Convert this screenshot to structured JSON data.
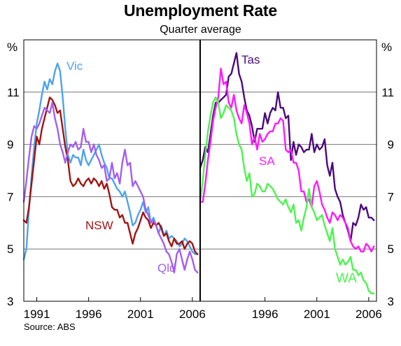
{
  "title": "Unemployment Rate",
  "subtitle": "Quarter average",
  "source": "Source: ABS",
  "chart_data": [
    {
      "type": "line",
      "panel": "left",
      "ylabel": "%",
      "ylim": [
        3,
        13
      ],
      "yticks": [
        3,
        5,
        7,
        9,
        11
      ],
      "xlim": [
        1989.75,
        2006.75
      ],
      "xticks": [
        1991,
        1996,
        2001,
        2006
      ],
      "grid": true,
      "series": [
        {
          "name": "Vic",
          "color": "#4da3ec",
          "x": [
            1989.75,
            1990,
            1990.25,
            1990.5,
            1990.75,
            1991,
            1991.25,
            1991.5,
            1991.75,
            1992,
            1992.25,
            1992.5,
            1992.75,
            1993,
            1993.25,
            1993.5,
            1993.75,
            1994,
            1994.25,
            1994.5,
            1994.75,
            1995,
            1995.25,
            1995.5,
            1995.75,
            1996,
            1996.25,
            1996.5,
            1996.75,
            1997,
            1997.25,
            1997.5,
            1997.75,
            1998,
            1998.25,
            1998.5,
            1998.75,
            1999,
            1999.25,
            1999.5,
            1999.75,
            2000,
            2000.25,
            2000.5,
            2000.75,
            2001,
            2001.25,
            2001.5,
            2001.75,
            2002,
            2002.25,
            2002.5,
            2002.75,
            2003,
            2003.25,
            2003.5,
            2003.75,
            2004,
            2004.25,
            2004.5,
            2004.75,
            2005,
            2005.25,
            2005.5,
            2005.75,
            2006,
            2006.25,
            2006.5
          ],
          "y": [
            4.6,
            5.0,
            6.5,
            7.8,
            8.9,
            9.8,
            10.3,
            10.9,
            11.4,
            11.1,
            11.5,
            11.3,
            11.8,
            12.1,
            11.8,
            10.8,
            9.6,
            8.6,
            8.3,
            8.6,
            8.5,
            8.5,
            8.2,
            8.8,
            8.4,
            8.2,
            8.4,
            8.6,
            8.8,
            9.0,
            8.6,
            8.3,
            8.1,
            7.7,
            7.7,
            7.5,
            7.3,
            7.2,
            7.0,
            7.2,
            6.8,
            6.4,
            5.9,
            6.0,
            6.3,
            6.5,
            6.8,
            6.4,
            6.6,
            6.0,
            6.2,
            5.9,
            5.6,
            5.9,
            5.5,
            5.7,
            5.4,
            5.5,
            5.4,
            5.3,
            5.1,
            5.2,
            5.4,
            5.3,
            5.1,
            4.9,
            4.8,
            4.8
          ]
        },
        {
          "name": "NSW",
          "color": "#a01414",
          "x": [
            1989.75,
            1990,
            1990.25,
            1990.5,
            1990.75,
            1991,
            1991.25,
            1991.5,
            1991.75,
            1992,
            1992.25,
            1992.5,
            1992.75,
            1993,
            1993.25,
            1993.5,
            1993.75,
            1994,
            1994.25,
            1994.5,
            1994.75,
            1995,
            1995.25,
            1995.5,
            1995.75,
            1996,
            1996.25,
            1996.5,
            1996.75,
            1997,
            1997.25,
            1997.5,
            1997.75,
            1998,
            1998.25,
            1998.5,
            1998.75,
            1999,
            1999.25,
            1999.5,
            1999.75,
            2000,
            2000.25,
            2000.5,
            2000.75,
            2001,
            2001.25,
            2001.5,
            2001.75,
            2002,
            2002.25,
            2002.5,
            2002.75,
            2003,
            2003.25,
            2003.5,
            2003.75,
            2004,
            2004.25,
            2004.5,
            2004.75,
            2005,
            2005.25,
            2005.5,
            2005.75,
            2006,
            2006.25,
            2006.5
          ],
          "y": [
            6.1,
            6.0,
            6.6,
            7.5,
            8.4,
            9.3,
            9.0,
            9.6,
            10.0,
            10.4,
            10.8,
            10.7,
            10.5,
            10.2,
            10.3,
            9.6,
            8.9,
            8.4,
            7.6,
            7.4,
            7.5,
            7.7,
            7.5,
            7.4,
            7.6,
            7.7,
            7.5,
            7.7,
            7.6,
            7.4,
            7.6,
            7.3,
            7.5,
            7.1,
            6.6,
            6.5,
            6.5,
            6.2,
            6.3,
            6.0,
            6.0,
            5.6,
            5.2,
            5.6,
            5.8,
            6.1,
            6.4,
            6.2,
            6.1,
            5.8,
            6.0,
            5.9,
            6.0,
            5.8,
            5.5,
            5.6,
            5.3,
            5.1,
            5.4,
            5.2,
            5.2,
            5.3,
            5.0,
            5.2,
            5.3,
            5.2,
            4.9,
            4.8
          ]
        },
        {
          "name": "Qld",
          "color": "#a45ef0",
          "x": [
            1989.75,
            1990,
            1990.25,
            1990.5,
            1990.75,
            1991,
            1991.25,
            1991.5,
            1991.75,
            1992,
            1992.25,
            1992.5,
            1992.75,
            1993,
            1993.25,
            1993.5,
            1993.75,
            1994,
            1994.25,
            1994.5,
            1994.75,
            1995,
            1995.25,
            1995.5,
            1995.75,
            1996,
            1996.25,
            1996.5,
            1996.75,
            1997,
            1997.25,
            1997.5,
            1997.75,
            1998,
            1998.25,
            1998.5,
            1998.75,
            1999,
            1999.25,
            1999.5,
            1999.75,
            2000,
            2000.25,
            2000.5,
            2000.75,
            2001,
            2001.25,
            2001.5,
            2001.75,
            2002,
            2002.25,
            2002.5,
            2002.75,
            2003,
            2003.25,
            2003.5,
            2003.75,
            2004,
            2004.25,
            2004.5,
            2004.75,
            2005,
            2005.25,
            2005.5,
            2005.75,
            2006,
            2006.25,
            2006.5
          ],
          "y": [
            6.8,
            7.6,
            8.5,
            9.3,
            9.7,
            9.6,
            9.8,
            10.1,
            10.4,
            10.3,
            10.2,
            10.6,
            10.0,
            9.6,
            9.0,
            8.7,
            8.3,
            8.7,
            9.0,
            8.9,
            9.1,
            8.8,
            8.9,
            9.6,
            9.1,
            9.1,
            8.7,
            9.0,
            8.6,
            8.4,
            8.1,
            8.2,
            7.6,
            7.7,
            8.3,
            7.7,
            7.9,
            7.5,
            8.3,
            8.8,
            8.2,
            8.3,
            7.4,
            7.6,
            7.4,
            7.2,
            7.0,
            6.5,
            6.3,
            6.0,
            6.1,
            5.9,
            5.6,
            5.4,
            5.2,
            4.9,
            4.8,
            4.5,
            4.1,
            4.8,
            5.0,
            4.6,
            4.2,
            4.6,
            4.9,
            4.6,
            4.2,
            4.1
          ]
        }
      ],
      "annotations": [
        "Vic",
        "NSW",
        "Qld"
      ]
    },
    {
      "type": "line",
      "panel": "right",
      "ylabel": "%",
      "ylim": [
        3,
        13
      ],
      "yticks": [
        3,
        5,
        7,
        9,
        11
      ],
      "xlim": [
        1989.75,
        2006.75
      ],
      "xticks": [
        1996,
        2001,
        2006
      ],
      "grid": true,
      "series": [
        {
          "name": "Tas",
          "color": "#4b0a7d",
          "x": [
            1989.75,
            1990,
            1990.25,
            1990.5,
            1990.75,
            1991,
            1991.25,
            1991.5,
            1991.75,
            1992,
            1992.25,
            1992.5,
            1992.75,
            1993,
            1993.25,
            1993.5,
            1993.75,
            1994,
            1994.25,
            1994.5,
            1994.75,
            1995,
            1995.25,
            1995.5,
            1995.75,
            1996,
            1996.25,
            1996.5,
            1996.75,
            1997,
            1997.25,
            1997.5,
            1997.75,
            1998,
            1998.25,
            1998.5,
            1998.75,
            1999,
            1999.25,
            1999.5,
            1999.75,
            2000,
            2000.25,
            2000.5,
            2000.75,
            2001,
            2001.25,
            2001.5,
            2001.75,
            2002,
            2002.25,
            2002.5,
            2002.75,
            2003,
            2003.25,
            2003.5,
            2003.75,
            2004,
            2004.25,
            2004.5,
            2004.75,
            2005,
            2005.25,
            2005.5,
            2005.75,
            2006,
            2006.25,
            2006.5
          ],
          "y": [
            8.1,
            8.4,
            8.9,
            8.7,
            9.4,
            10.1,
            10.6,
            10.6,
            10.7,
            10.8,
            10.9,
            11.6,
            11.7,
            12.1,
            12.5,
            11.7,
            11.4,
            10.8,
            10.3,
            10.1,
            9.7,
            9.1,
            9.6,
            9.6,
            9.6,
            10.2,
            9.8,
            10.2,
            10.4,
            10.3,
            11.0,
            10.4,
            10.4,
            10.0,
            10.1,
            8.4,
            9.1,
            8.6,
            9.0,
            8.9,
            8.7,
            8.8,
            8.8,
            9.4,
            8.7,
            9.0,
            8.8,
            8.9,
            9.2,
            8.2,
            7.8,
            8.3,
            7.3,
            7.0,
            6.8,
            6.3,
            6.0,
            5.7,
            5.3,
            6.0,
            5.9,
            6.2,
            6.7,
            6.5,
            6.6,
            6.2,
            6.2,
            6.1
          ]
        },
        {
          "name": "SA",
          "color": "#ff1aff",
          "x": [
            1989.75,
            1990,
            1990.25,
            1990.5,
            1990.75,
            1991,
            1991.25,
            1991.5,
            1991.75,
            1992,
            1992.25,
            1992.5,
            1992.75,
            1993,
            1993.25,
            1993.5,
            1993.75,
            1994,
            1994.25,
            1994.5,
            1994.75,
            1995,
            1995.25,
            1995.5,
            1995.75,
            1996,
            1996.25,
            1996.5,
            1996.75,
            1997,
            1997.25,
            1997.5,
            1997.75,
            1998,
            1998.25,
            1998.5,
            1998.75,
            1999,
            1999.25,
            1999.5,
            1999.75,
            2000,
            2000.25,
            2000.5,
            2000.75,
            2001,
            2001.25,
            2001.5,
            2001.75,
            2002,
            2002.25,
            2002.5,
            2002.75,
            2003,
            2003.25,
            2003.5,
            2003.75,
            2004,
            2004.25,
            2004.5,
            2004.75,
            2005,
            2005.25,
            2005.5,
            2005.75,
            2006,
            2006.25,
            2006.5
          ],
          "y": [
            6.8,
            6.8,
            7.5,
            8.4,
            9.1,
            9.9,
            10.4,
            10.8,
            11.9,
            11.3,
            11.4,
            10.6,
            10.4,
            10.9,
            10.3,
            10.0,
            9.8,
            10.5,
            10.2,
            9.8,
            9.0,
            9.3,
            8.8,
            9.4,
            9.1,
            9.2,
            9.4,
            9.5,
            9.5,
            9.8,
            9.8,
            10.0,
            9.9,
            8.8,
            8.7,
            8.8,
            8.3,
            8.3,
            8.0,
            7.2,
            7.2,
            6.8,
            6.9,
            6.6,
            7.4,
            7.6,
            7.2,
            6.7,
            6.5,
            6.2,
            6.0,
            6.4,
            6.3,
            6.1,
            6.3,
            6.2,
            6.0,
            5.8,
            5.3,
            5.1,
            5.0,
            5.1,
            4.9,
            4.9,
            5.2,
            5.1,
            4.9,
            5.1
          ]
        },
        {
          "name": "WA",
          "color": "#4cf54c",
          "x": [
            1989.75,
            1990,
            1990.25,
            1990.5,
            1990.75,
            1991,
            1991.25,
            1991.5,
            1991.75,
            1992,
            1992.25,
            1992.5,
            1992.75,
            1993,
            1993.25,
            1993.5,
            1993.75,
            1994,
            1994.25,
            1994.5,
            1994.75,
            1995,
            1995.25,
            1995.5,
            1995.75,
            1996,
            1996.25,
            1996.5,
            1996.75,
            1997,
            1997.25,
            1997.5,
            1997.75,
            1998,
            1998.25,
            1998.5,
            1998.75,
            1999,
            1999.25,
            1999.5,
            1999.75,
            2000,
            2000.25,
            2000.5,
            2000.75,
            2001,
            2001.25,
            2001.5,
            2001.75,
            2002,
            2002.25,
            2002.5,
            2002.75,
            2003,
            2003.25,
            2003.5,
            2003.75,
            2004,
            2004.25,
            2004.5,
            2004.75,
            2005,
            2005.25,
            2005.5,
            2005.75,
            2006,
            2006.25,
            2006.5
          ],
          "y": [
            6.8,
            7.6,
            8.6,
            9.5,
            10.1,
            10.6,
            10.8,
            10.6,
            10.0,
            10.2,
            10.5,
            10.4,
            10.3,
            10.0,
            9.4,
            9.0,
            8.8,
            8.1,
            7.6,
            7.9,
            7.0,
            7.1,
            7.5,
            7.4,
            7.2,
            7.2,
            7.5,
            7.4,
            7.3,
            7.1,
            6.9,
            6.8,
            6.7,
            6.9,
            6.6,
            6.4,
            6.7,
            6.0,
            6.1,
            5.7,
            6.2,
            6.6,
            7.3,
            6.6,
            6.4,
            6.1,
            6.2,
            6.3,
            5.9,
            5.6,
            5.3,
            5.8,
            5.0,
            4.7,
            4.4,
            4.6,
            4.4,
            4.5,
            4.7,
            4.2,
            4.2,
            4.0,
            4.1,
            3.8,
            3.7,
            3.4,
            3.3,
            3.3
          ]
        }
      ],
      "annotations": [
        "Tas",
        "SA",
        "WA"
      ]
    }
  ],
  "axis": {
    "left_unit": "%",
    "right_unit": "%"
  }
}
